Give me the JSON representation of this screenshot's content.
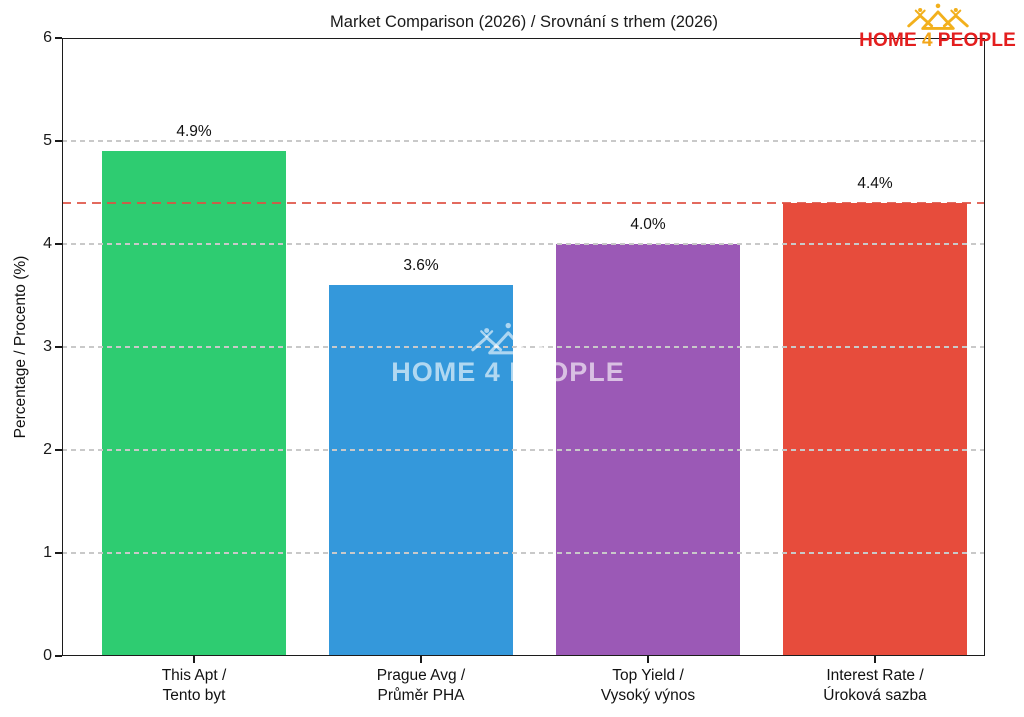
{
  "chart_data": {
    "type": "bar",
    "title": "Market Comparison (2026) / Srovnání s trhem (2026)",
    "ylabel": "Percentage / Procento (%)",
    "categories": [
      "This Apt /\nTento byt",
      "Prague Avg /\nPrůměr PHA",
      "Top Yield /\nVysoký výnos",
      "Interest Rate /\nÚroková sazba"
    ],
    "values": [
      4.9,
      3.6,
      4.0,
      4.4
    ],
    "value_labels": [
      "4.9%",
      "3.6%",
      "4.0%",
      "4.4%"
    ],
    "bar_colors": [
      "#2ecc71",
      "#3498db",
      "#9b59b6",
      "#e74c3c"
    ],
    "ylim": [
      0,
      6
    ],
    "yticks": [
      0,
      1,
      2,
      3,
      4,
      5,
      6
    ],
    "grid": {
      "axis": "y",
      "style": "dashed",
      "color": "#c9c9c9"
    },
    "reference_line": {
      "value": 4.4,
      "style": "dashed",
      "color": "#de4f42"
    },
    "legend": null,
    "text_color": "#1a1a1a"
  },
  "branding": {
    "logo": {
      "icon": "three-houses-people-icon",
      "word1": "HOME",
      "word2": "4",
      "word3": "PEOPLE",
      "word_color": "#e31e1e",
      "four_color": "#f2a51a",
      "icon_color": "#f2b01c"
    },
    "watermark": {
      "icon": "three-houses-people-icon",
      "text": "HOME 4 PEOPLE"
    }
  }
}
